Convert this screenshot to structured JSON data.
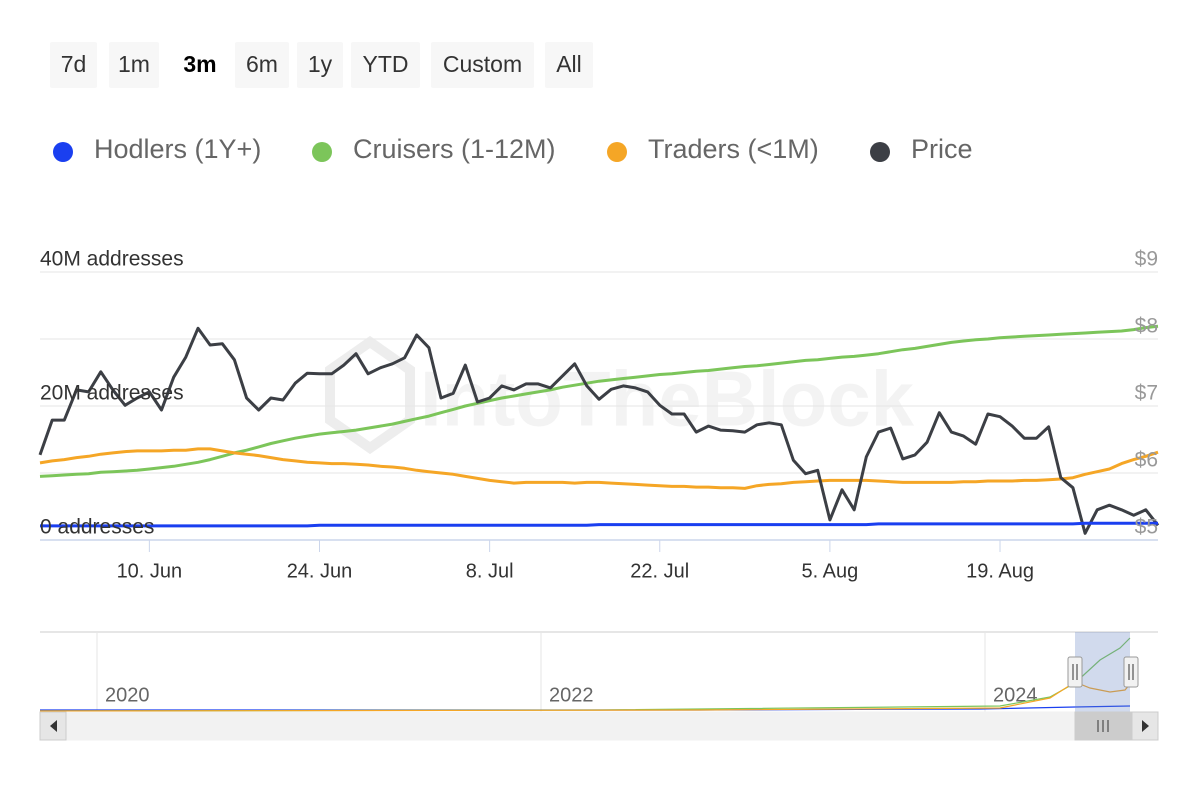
{
  "range_buttons": [
    "7d",
    "1m",
    "3m",
    "6m",
    "1y",
    "YTD",
    "Custom",
    "All"
  ],
  "selected": 2,
  "watermark": "IntoTheBlock",
  "navigator": {
    "labels": [
      "2020",
      "2022",
      "2024"
    ]
  },
  "chart_data": {
    "type": "line",
    "categories": [
      "1. Jun",
      "2. Jun",
      "3. Jun",
      "4. Jun",
      "5. Jun",
      "6. Jun",
      "7. Jun",
      "8. Jun",
      "9. Jun",
      "10. Jun",
      "11. Jun",
      "12. Jun",
      "13. Jun",
      "14. Jun",
      "15. Jun",
      "16. Jun",
      "17. Jun",
      "18. Jun",
      "19. Jun",
      "20. Jun",
      "21. Jun",
      "22. Jun",
      "23. Jun",
      "24. Jun",
      "25. Jun",
      "26. Jun",
      "27. Jun",
      "28. Jun",
      "29. Jun",
      "30. Jun",
      "1. Jul",
      "2. Jul",
      "3. Jul",
      "4. Jul",
      "5. Jul",
      "6. Jul",
      "7. Jul",
      "8. Jul",
      "9. Jul",
      "10. Jul",
      "11. Jul",
      "12. Jul",
      "13. Jul",
      "14. Jul",
      "15. Jul",
      "16. Jul",
      "17. Jul",
      "18. Jul",
      "19. Jul",
      "20. Jul",
      "21. Jul",
      "22. Jul",
      "23. Jul",
      "24. Jul",
      "25. Jul",
      "26. Jul",
      "27. Jul",
      "28. Jul",
      "29. Jul",
      "30. Jul",
      "31. Jul",
      "1. Aug",
      "2. Aug",
      "3. Aug",
      "4. Aug",
      "5. Aug",
      "6. Aug",
      "7. Aug",
      "8. Aug",
      "9. Aug",
      "10. Aug",
      "11. Aug",
      "12. Aug",
      "13. Aug",
      "14. Aug",
      "15. Aug",
      "16. Aug",
      "17. Aug",
      "18. Aug",
      "19. Aug",
      "20. Aug",
      "21. Aug",
      "22. Aug",
      "23. Aug",
      "24. Aug",
      "25. Aug",
      "26. Aug",
      "27. Aug",
      "28. Aug",
      "29. Aug",
      "30. Aug",
      "31. Aug",
      "1. Sep"
    ],
    "xticks": [
      "10. Jun",
      "24. Jun",
      "8. Jul",
      "22. Jul",
      "5. Aug",
      "19. Aug"
    ],
    "ylim": [
      0,
      40000000
    ],
    "yticks": [
      {
        "value": 0,
        "label": "0 addresses"
      },
      {
        "value": 20000000,
        "label": "20M addresses"
      },
      {
        "value": 40000000,
        "label": "40M addresses"
      }
    ],
    "y2lim": [
      5,
      9
    ],
    "y2ticks": [
      {
        "value": 5,
        "label": "$5"
      },
      {
        "value": 6,
        "label": "$6"
      },
      {
        "value": 7,
        "label": "$7"
      },
      {
        "value": 8,
        "label": "$8"
      },
      {
        "value": 9,
        "label": "$9"
      }
    ],
    "grid": true,
    "series": [
      {
        "name": "Hodlers (1Y+)",
        "color": "#1a3ff0",
        "values": [
          2100000,
          2100000,
          2100000,
          2100000,
          2100000,
          2100000,
          2100000,
          2100000,
          2100000,
          2100000,
          2100000,
          2100000,
          2100000,
          2100000,
          2100000,
          2100000,
          2100000,
          2100000,
          2100000,
          2100000,
          2100000,
          2100000,
          2100000,
          2200000,
          2200000,
          2200000,
          2200000,
          2200000,
          2200000,
          2200000,
          2200000,
          2200000,
          2200000,
          2200000,
          2200000,
          2200000,
          2200000,
          2200000,
          2200000,
          2200000,
          2200000,
          2200000,
          2200000,
          2200000,
          2200000,
          2200000,
          2300000,
          2300000,
          2300000,
          2300000,
          2300000,
          2300000,
          2300000,
          2300000,
          2300000,
          2300000,
          2300000,
          2300000,
          2300000,
          2300000,
          2300000,
          2300000,
          2300000,
          2300000,
          2300000,
          2300000,
          2300000,
          2300000,
          2300000,
          2400000,
          2400000,
          2400000,
          2400000,
          2400000,
          2400000,
          2400000,
          2400000,
          2400000,
          2400000,
          2400000,
          2400000,
          2400000,
          2400000,
          2400000,
          2400000,
          2400000,
          2500000,
          2500000,
          2500000,
          2500000,
          2500000,
          2500000,
          2500000
        ]
      },
      {
        "name": "Cruisers (1-12M)",
        "color": "#7cc55a",
        "values": [
          9500000,
          9600000,
          9700000,
          9800000,
          9900000,
          10100000,
          10200000,
          10300000,
          10400000,
          10600000,
          10800000,
          11000000,
          11300000,
          11600000,
          12000000,
          12500000,
          13000000,
          13400000,
          13900000,
          14400000,
          14800000,
          15200000,
          15500000,
          15800000,
          16000000,
          16200000,
          16400000,
          16700000,
          17000000,
          17300000,
          17700000,
          18100000,
          18500000,
          19000000,
          19500000,
          20000000,
          20400000,
          20800000,
          21200000,
          21500000,
          21800000,
          22100000,
          22400000,
          22800000,
          23100000,
          23400000,
          23700000,
          23900000,
          24100000,
          24300000,
          24500000,
          24700000,
          24800000,
          25000000,
          25200000,
          25300000,
          25500000,
          25700000,
          25900000,
          26000000,
          26200000,
          26400000,
          26600000,
          26800000,
          26900000,
          27100000,
          27300000,
          27400000,
          27600000,
          27800000,
          28100000,
          28400000,
          28600000,
          28900000,
          29200000,
          29500000,
          29700000,
          29900000,
          30000000,
          30200000,
          30300000,
          30400000,
          30500000,
          30600000,
          30700000,
          30800000,
          30900000,
          31000000,
          31100000,
          31200000,
          31400000,
          31700000,
          31900000
        ]
      },
      {
        "name": "Traders (<1M)",
        "color": "#f5a626",
        "values": [
          11500000,
          11800000,
          12000000,
          12300000,
          12500000,
          12800000,
          13000000,
          13200000,
          13300000,
          13300000,
          13300000,
          13400000,
          13400000,
          13600000,
          13600000,
          13300000,
          13000000,
          12800000,
          12600000,
          12300000,
          12000000,
          11800000,
          11600000,
          11500000,
          11400000,
          11400000,
          11300000,
          11200000,
          11000000,
          10900000,
          10700000,
          10400000,
          10200000,
          10000000,
          9800000,
          9500000,
          9200000,
          8900000,
          8700000,
          8500000,
          8600000,
          8600000,
          8600000,
          8600000,
          8500000,
          8600000,
          8600000,
          8500000,
          8400000,
          8300000,
          8200000,
          8100000,
          8000000,
          8000000,
          7900000,
          7900000,
          7800000,
          7800000,
          7700000,
          8100000,
          8300000,
          8400000,
          8600000,
          8700000,
          8800000,
          8900000,
          8900000,
          8900000,
          8900000,
          8800000,
          8700000,
          8600000,
          8600000,
          8600000,
          8600000,
          8600000,
          8700000,
          8700000,
          8800000,
          8800000,
          8800000,
          8900000,
          8900000,
          9000000,
          9100000,
          9300000,
          9800000,
          10200000,
          10600000,
          11400000,
          12000000,
          12500000,
          13100000
        ]
      },
      {
        "name": "Price",
        "color": "#3c3f45",
        "axis": "y2",
        "values": [
          6.27,
          6.79,
          6.79,
          7.24,
          7.21,
          7.51,
          7.24,
          7.01,
          7.12,
          7.21,
          6.94,
          7.43,
          7.73,
          8.16,
          7.91,
          7.93,
          7.69,
          7.12,
          6.94,
          7.12,
          7.09,
          7.34,
          7.49,
          7.48,
          7.48,
          7.61,
          7.78,
          7.48,
          7.57,
          7.63,
          7.72,
          8.06,
          7.87,
          7.12,
          7.19,
          7.61,
          7.06,
          7.12,
          7.3,
          7.24,
          7.33,
          7.33,
          7.27,
          7.45,
          7.63,
          7.3,
          7.1,
          7.25,
          7.3,
          7.27,
          7.21,
          7.01,
          6.88,
          6.88,
          6.61,
          6.7,
          6.64,
          6.63,
          6.61,
          6.72,
          6.75,
          6.72,
          6.19,
          5.99,
          6.04,
          5.3,
          5.75,
          5.45,
          6.24,
          6.61,
          6.67,
          6.21,
          6.27,
          6.46,
          6.9,
          6.61,
          6.55,
          6.43,
          6.88,
          6.84,
          6.7,
          6.52,
          6.52,
          6.69,
          5.93,
          5.78,
          5.1,
          5.45,
          5.52,
          5.45,
          5.37,
          5.45,
          5.22
        ]
      }
    ]
  }
}
